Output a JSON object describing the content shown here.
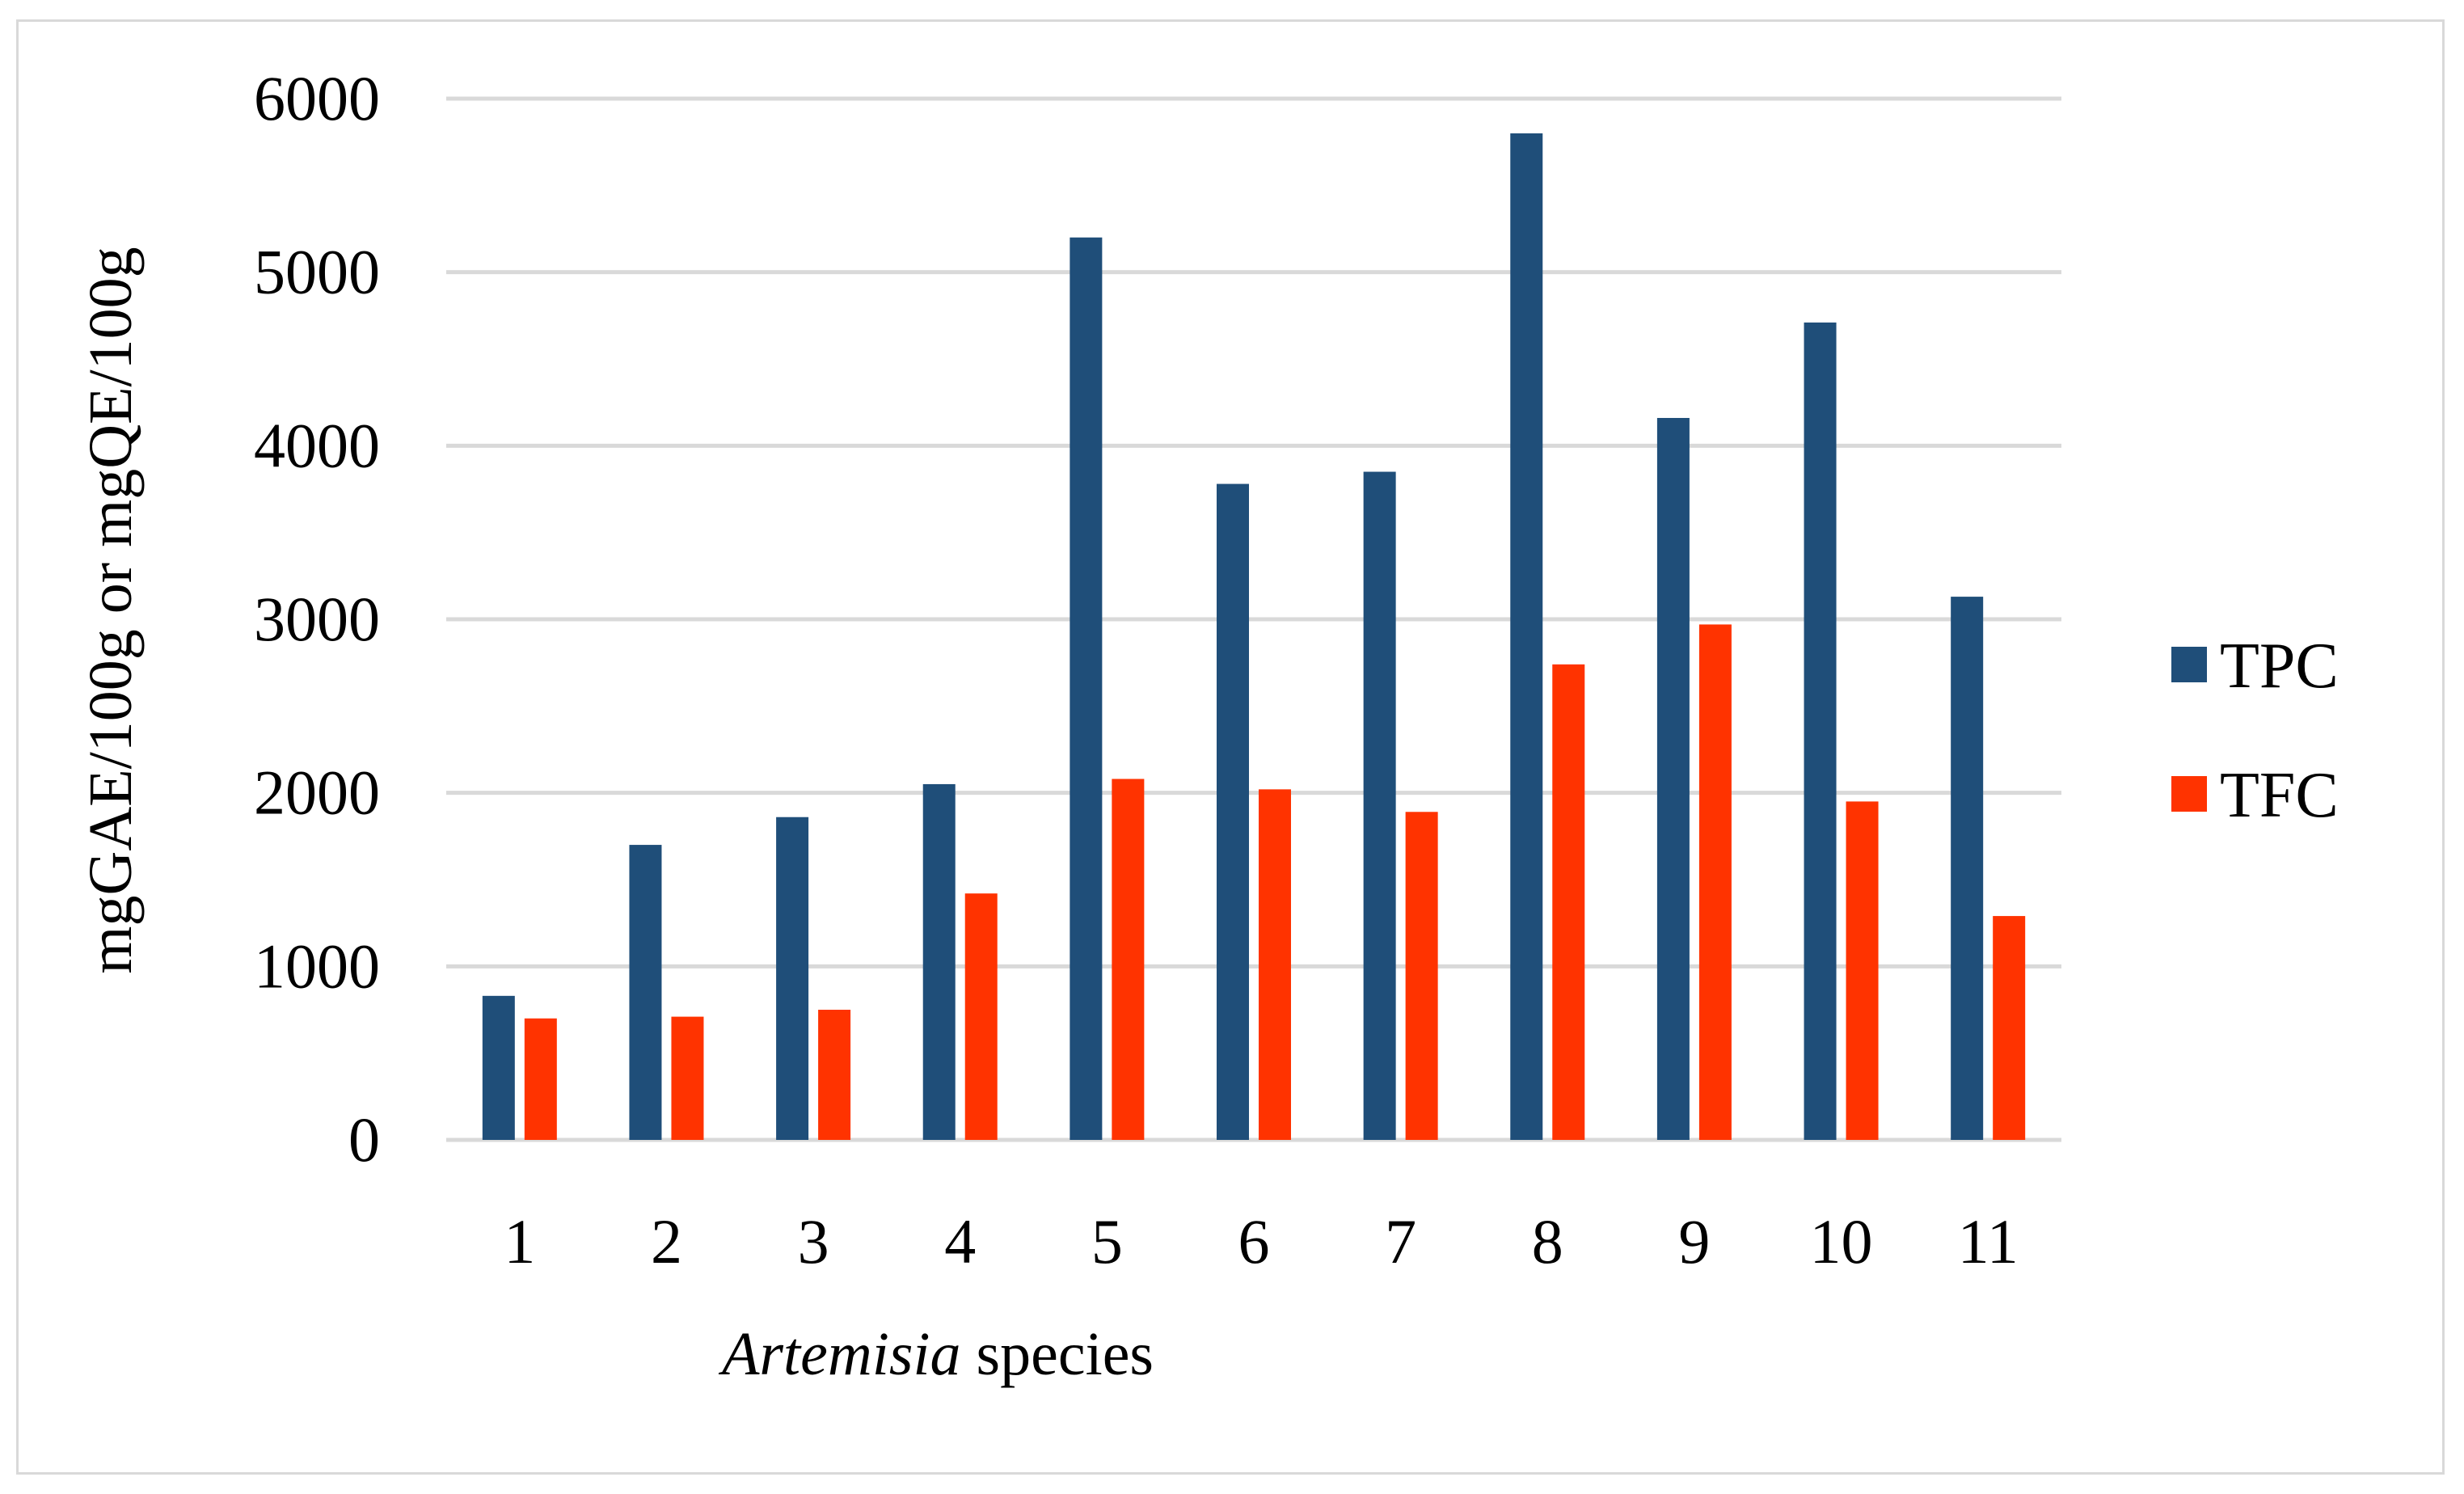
{
  "chart_data": {
    "type": "bar",
    "title": "",
    "xlabel": {
      "italic": "Artemisia",
      "rest": " species"
    },
    "ylabel": "mgGAE/100g or mgQE/100g",
    "categories": [
      "1",
      "2",
      "3",
      "4",
      "5",
      "6",
      "7",
      "8",
      "9",
      "10",
      "11"
    ],
    "yticks": [
      "0",
      "1000",
      "2000",
      "3000",
      "4000",
      "5000",
      "6000"
    ],
    "ylim": [
      0,
      6000
    ],
    "grid": true,
    "legend_position": "right",
    "series": [
      {
        "name": "TPC",
        "color": "#1f4e79",
        "values": [
          830,
          1700,
          1860,
          2050,
          5200,
          3780,
          3850,
          5800,
          4160,
          4710,
          3130
        ]
      },
      {
        "name": "TFC",
        "color": "#ff3300",
        "values": [
          700,
          710,
          750,
          1420,
          2080,
          2020,
          1890,
          2740,
          2970,
          1950,
          1290
        ]
      }
    ]
  }
}
